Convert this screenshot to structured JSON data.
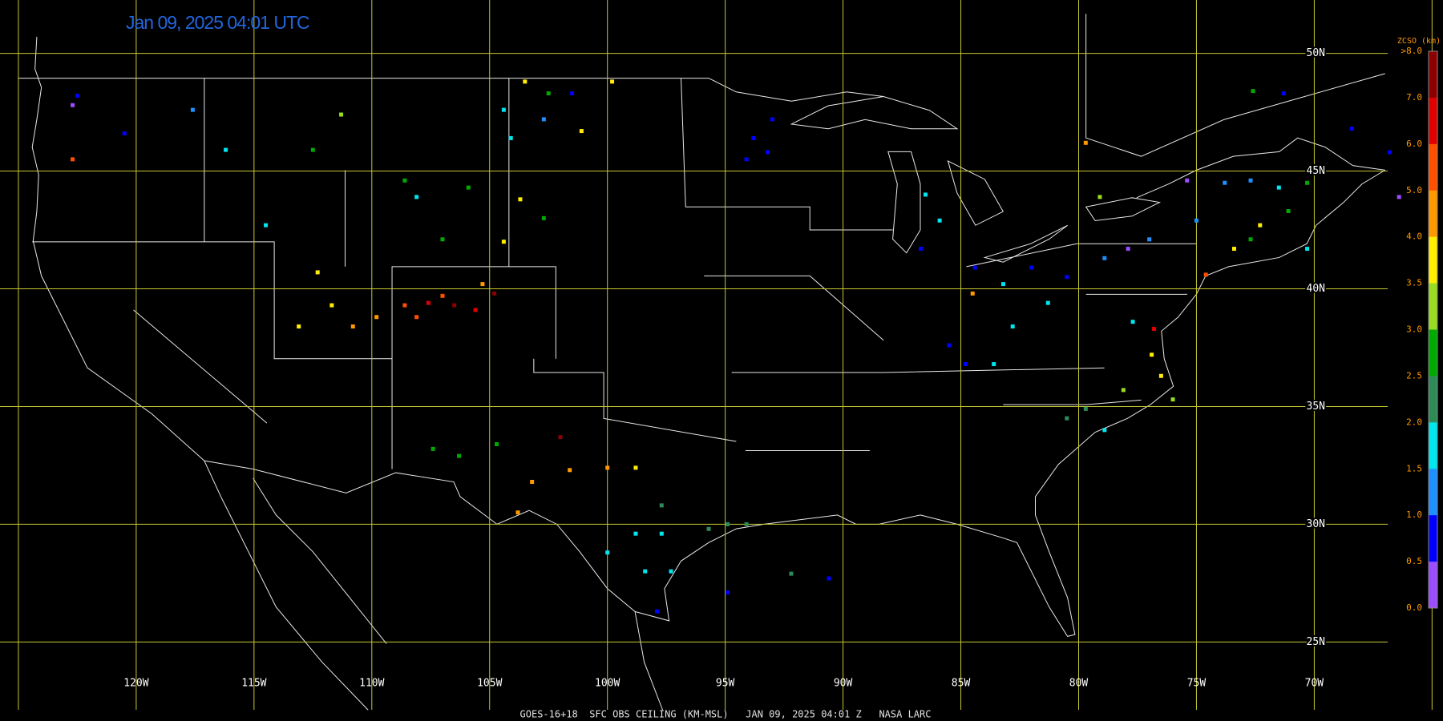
{
  "header": {
    "title": "Jan 09, 2025 04:01 UTC"
  },
  "map": {
    "lon_lines": [
      {
        "value": -125,
        "label": null
      },
      {
        "value": -120,
        "label": "120W"
      },
      {
        "value": -115,
        "label": "115W"
      },
      {
        "value": -110,
        "label": "110W"
      },
      {
        "value": -105,
        "label": "105W"
      },
      {
        "value": -100,
        "label": "100W"
      },
      {
        "value": -95,
        "label": "95W"
      },
      {
        "value": -90,
        "label": "90W"
      },
      {
        "value": -85,
        "label": "85W"
      },
      {
        "value": -80,
        "label": "80W"
      },
      {
        "value": -75,
        "label": "75W"
      },
      {
        "value": -70,
        "label": "70W"
      },
      {
        "value": -65,
        "label": null
      }
    ],
    "lat_lines": [
      {
        "value": 50,
        "label": "50N"
      },
      {
        "value": 45,
        "label": "45N"
      },
      {
        "value": 40,
        "label": "40N"
      },
      {
        "value": 35,
        "label": "35N"
      },
      {
        "value": 30,
        "label": "30N"
      },
      {
        "value": 25,
        "label": "25N"
      }
    ]
  },
  "colorbar": {
    "title": "ZCSO (km)",
    "labels": [
      ">8.0",
      "7.0",
      "6.0",
      "5.0",
      "4.0",
      "3.5",
      "3.0",
      "2.5",
      "2.0",
      "1.5",
      "1.0",
      "0.5",
      "0.0"
    ],
    "colors": [
      "#8b0000",
      "#e00000",
      "#ff5000",
      "#ff9900",
      "#ffee00",
      "#99dd22",
      "#00aa00",
      "#2e8b57",
      "#00e5ee",
      "#1e90ff",
      "#0000ff",
      "#9b4dff"
    ]
  },
  "stations": [
    {
      "lon": -107.6,
      "lat": 39.4,
      "ceiling": 6.5
    },
    {
      "lon": -106.5,
      "lat": 39.3,
      "ceiling": 7.5
    },
    {
      "lon": -105.6,
      "lat": 39.1,
      "ceiling": 6.5
    },
    {
      "lon": -104.8,
      "lat": 39.8,
      "ceiling": 7.5
    },
    {
      "lon": -105.3,
      "lat": 40.2,
      "ceiling": 4.5
    },
    {
      "lon": -108.6,
      "lat": 39.3,
      "ceiling": 5.5
    },
    {
      "lon": -108.1,
      "lat": 38.8,
      "ceiling": 5.5
    },
    {
      "lon": -107.0,
      "lat": 39.7,
      "ceiling": 5.5
    },
    {
      "lon": -112.3,
      "lat": 40.7,
      "ceiling": 3.8
    },
    {
      "lon": -111.7,
      "lat": 39.3,
      "ceiling": 3.8
    },
    {
      "lon": -113.1,
      "lat": 38.4,
      "ceiling": 3.8
    },
    {
      "lon": -110.8,
      "lat": 38.4,
      "ceiling": 4.5
    },
    {
      "lon": -109.8,
      "lat": 38.8,
      "ceiling": 4.5
    },
    {
      "lon": -108.6,
      "lat": 44.6,
      "ceiling": 2.8
    },
    {
      "lon": -107.0,
      "lat": 42.1,
      "ceiling": 2.8
    },
    {
      "lon": -108.1,
      "lat": 43.9,
      "ceiling": 1.8
    },
    {
      "lon": -105.9,
      "lat": 44.3,
      "ceiling": 2.8
    },
    {
      "lon": -112.5,
      "lat": 45.9,
      "ceiling": 2.8
    },
    {
      "lon": -111.3,
      "lat": 47.4,
      "ceiling": 3.3
    },
    {
      "lon": -122.7,
      "lat": 47.8,
      "ceiling": 0.3
    },
    {
      "lon": -122.5,
      "lat": 48.2,
      "ceiling": 0.8
    },
    {
      "lon": -120.5,
      "lat": 46.6,
      "ceiling": 0.8
    },
    {
      "lon": -117.6,
      "lat": 47.6,
      "ceiling": 1.2
    },
    {
      "lon": -122.7,
      "lat": 45.5,
      "ceiling": 5.5
    },
    {
      "lon": -116.2,
      "lat": 45.9,
      "ceiling": 1.8
    },
    {
      "lon": -114.5,
      "lat": 42.7,
      "ceiling": 1.8
    },
    {
      "lon": -103.5,
      "lat": 48.8,
      "ceiling": 3.8
    },
    {
      "lon": -102.5,
      "lat": 48.3,
      "ceiling": 2.8
    },
    {
      "lon": -101.5,
      "lat": 48.3,
      "ceiling": 0.8
    },
    {
      "lon": -99.8,
      "lat": 48.8,
      "ceiling": 3.8
    },
    {
      "lon": -102.7,
      "lat": 47.2,
      "ceiling": 1.2
    },
    {
      "lon": -101.1,
      "lat": 46.7,
      "ceiling": 3.8
    },
    {
      "lon": -104.1,
      "lat": 46.4,
      "ceiling": 1.8
    },
    {
      "lon": -104.4,
      "lat": 47.6,
      "ceiling": 1.8
    },
    {
      "lon": -103.7,
      "lat": 43.8,
      "ceiling": 3.8
    },
    {
      "lon": -102.7,
      "lat": 43.0,
      "ceiling": 2.8
    },
    {
      "lon": -104.4,
      "lat": 42.0,
      "ceiling": 3.8
    },
    {
      "lon": -106.3,
      "lat": 32.9,
      "ceiling": 2.8
    },
    {
      "lon": -107.4,
      "lat": 33.2,
      "ceiling": 2.8
    },
    {
      "lon": -102.0,
      "lat": 33.7,
      "ceiling": 7.5
    },
    {
      "lon": -104.7,
      "lat": 33.4,
      "ceiling": 2.8
    },
    {
      "lon": -103.2,
      "lat": 31.8,
      "ceiling": 4.5
    },
    {
      "lon": -103.8,
      "lat": 30.5,
      "ceiling": 4.5
    },
    {
      "lon": -101.6,
      "lat": 32.3,
      "ceiling": 4.5
    },
    {
      "lon": -98.8,
      "lat": 32.4,
      "ceiling": 3.8
    },
    {
      "lon": -100.0,
      "lat": 32.4,
      "ceiling": 4.5
    },
    {
      "lon": -97.7,
      "lat": 30.8,
      "ceiling": 2.3
    },
    {
      "lon": -98.8,
      "lat": 29.6,
      "ceiling": 1.8
    },
    {
      "lon": -97.7,
      "lat": 29.6,
      "ceiling": 1.8
    },
    {
      "lon": -100.0,
      "lat": 28.8,
      "ceiling": 1.8
    },
    {
      "lon": -98.4,
      "lat": 28.0,
      "ceiling": 1.8
    },
    {
      "lon": -97.3,
      "lat": 28.0,
      "ceiling": 1.8
    },
    {
      "lon": -97.9,
      "lat": 26.3,
      "ceiling": 0.8
    },
    {
      "lon": -95.7,
      "lat": 29.8,
      "ceiling": 2.3
    },
    {
      "lon": -94.9,
      "lat": 30.0,
      "ceiling": 2.3
    },
    {
      "lon": -94.1,
      "lat": 30.0,
      "ceiling": 2.3
    },
    {
      "lon": -92.2,
      "lat": 27.9,
      "ceiling": 2.3
    },
    {
      "lon": -90.6,
      "lat": 27.7,
      "ceiling": 0.8
    },
    {
      "lon": -94.9,
      "lat": 27.1,
      "ceiling": 0.8
    },
    {
      "lon": -93.8,
      "lat": 46.4,
      "ceiling": 0.8
    },
    {
      "lon": -93.2,
      "lat": 45.8,
      "ceiling": 0.8
    },
    {
      "lon": -94.1,
      "lat": 45.5,
      "ceiling": 0.8
    },
    {
      "lon": -93.0,
      "lat": 47.2,
      "ceiling": 0.8
    },
    {
      "lon": -86.5,
      "lat": 44.0,
      "ceiling": 1.8
    },
    {
      "lon": -85.9,
      "lat": 42.9,
      "ceiling": 1.8
    },
    {
      "lon": -86.7,
      "lat": 41.7,
      "ceiling": 0.8
    },
    {
      "lon": -84.4,
      "lat": 40.9,
      "ceiling": 0.8
    },
    {
      "lon": -83.2,
      "lat": 40.2,
      "ceiling": 1.8
    },
    {
      "lon": -82.0,
      "lat": 40.9,
      "ceiling": 0.8
    },
    {
      "lon": -84.5,
      "lat": 39.8,
      "ceiling": 4.5
    },
    {
      "lon": -82.8,
      "lat": 38.4,
      "ceiling": 1.8
    },
    {
      "lon": -81.3,
      "lat": 39.4,
      "ceiling": 1.8
    },
    {
      "lon": -85.5,
      "lat": 37.6,
      "ceiling": 0.8
    },
    {
      "lon": -84.8,
      "lat": 36.8,
      "ceiling": 0.8
    },
    {
      "lon": -83.6,
      "lat": 36.8,
      "ceiling": 1.8
    },
    {
      "lon": -80.5,
      "lat": 40.5,
      "ceiling": 0.8
    },
    {
      "lon": -78.9,
      "lat": 41.3,
      "ceiling": 1.2
    },
    {
      "lon": -77.0,
      "lat": 42.1,
      "ceiling": 1.2
    },
    {
      "lon": -77.7,
      "lat": 38.6,
      "ceiling": 1.8
    },
    {
      "lon": -76.8,
      "lat": 38.3,
      "ceiling": 6.5
    },
    {
      "lon": -76.9,
      "lat": 37.2,
      "ceiling": 3.8
    },
    {
      "lon": -76.5,
      "lat": 36.3,
      "ceiling": 3.8
    },
    {
      "lon": -76.0,
      "lat": 35.3,
      "ceiling": 3.3
    },
    {
      "lon": -78.1,
      "lat": 35.7,
      "ceiling": 3.3
    },
    {
      "lon": -79.7,
      "lat": 34.9,
      "ceiling": 2.3
    },
    {
      "lon": -80.5,
      "lat": 34.5,
      "ceiling": 2.3
    },
    {
      "lon": -78.9,
      "lat": 34.0,
      "ceiling": 1.8
    },
    {
      "lon": -74.6,
      "lat": 40.6,
      "ceiling": 5.5
    },
    {
      "lon": -73.4,
      "lat": 41.7,
      "ceiling": 3.8
    },
    {
      "lon": -72.7,
      "lat": 42.1,
      "ceiling": 2.8
    },
    {
      "lon": -72.3,
      "lat": 42.7,
      "ceiling": 3.8
    },
    {
      "lon": -71.1,
      "lat": 43.3,
      "ceiling": 2.8
    },
    {
      "lon": -71.5,
      "lat": 44.3,
      "ceiling": 1.8
    },
    {
      "lon": -70.3,
      "lat": 41.7,
      "ceiling": 1.8
    },
    {
      "lon": -75.0,
      "lat": 42.9,
      "ceiling": 1.2
    },
    {
      "lon": -73.8,
      "lat": 44.5,
      "ceiling": 1.2
    },
    {
      "lon": -72.7,
      "lat": 44.6,
      "ceiling": 1.2
    },
    {
      "lon": -70.3,
      "lat": 44.5,
      "ceiling": 2.8
    },
    {
      "lon": -68.4,
      "lat": 46.8,
      "ceiling": 0.8
    },
    {
      "lon": -71.3,
      "lat": 48.3,
      "ceiling": 0.8
    },
    {
      "lon": -72.6,
      "lat": 48.4,
      "ceiling": 2.8
    },
    {
      "lon": -77.9,
      "lat": 41.7,
      "ceiling": 0.3
    },
    {
      "lon": -75.4,
      "lat": 44.6,
      "ceiling": 0.3
    },
    {
      "lon": -66.4,
      "lat": 43.9,
      "ceiling": 0.3
    },
    {
      "lon": -66.8,
      "lat": 45.8,
      "ceiling": 0.8
    },
    {
      "lon": -79.7,
      "lat": 46.2,
      "ceiling": 4.5
    },
    {
      "lon": -79.1,
      "lat": 43.9,
      "ceiling": 3.3
    }
  ],
  "footer": {
    "text": "GOES-16+18  SFC OBS CEILING (KM-MSL)   JAN 09, 2025 04:01 Z   NASA LARC"
  }
}
